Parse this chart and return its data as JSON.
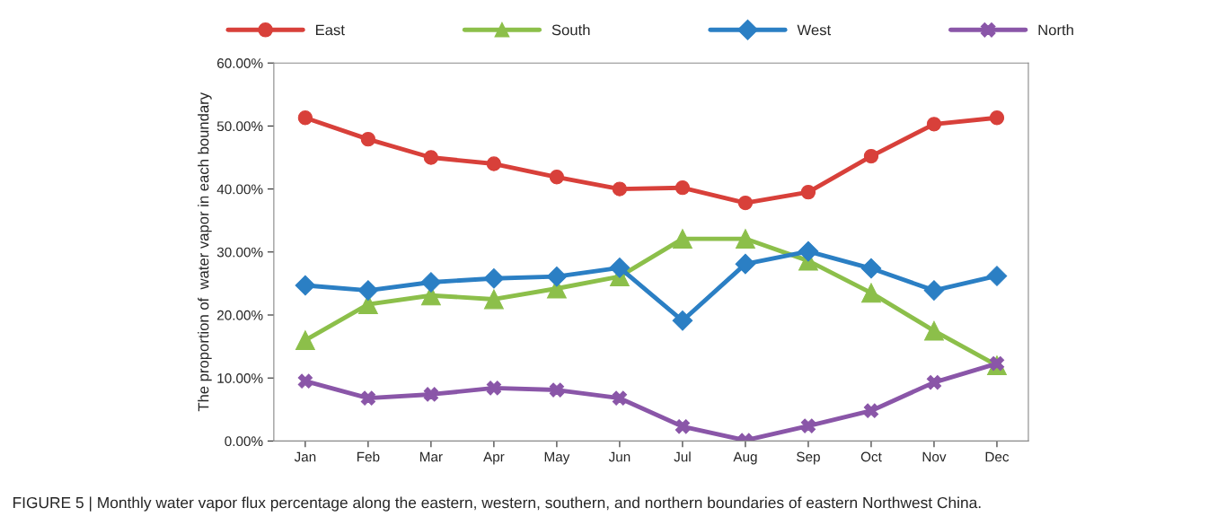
{
  "chart_data": {
    "type": "line",
    "ylabel": "The proportion of  water vapor in each boundary",
    "categories": [
      "Jan",
      "Feb",
      "Mar",
      "Apr",
      "May",
      "Jun",
      "Jul",
      "Aug",
      "Sep",
      "Oct",
      "Nov",
      "Dec"
    ],
    "series": [
      {
        "name": "East",
        "color": "#d8403a",
        "marker": "circle",
        "values": [
          51.3,
          47.9,
          45.0,
          44.0,
          41.9,
          40.0,
          40.2,
          37.8,
          39.5,
          45.2,
          50.3,
          51.3
        ]
      },
      {
        "name": "South",
        "color": "#8cbf4a",
        "marker": "triangle",
        "values": [
          16.0,
          21.7,
          23.1,
          22.5,
          24.2,
          26.1,
          32.1,
          32.1,
          28.6,
          23.5,
          17.5,
          12.0
        ]
      },
      {
        "name": "West",
        "color": "#2b7fc4",
        "marker": "diamond",
        "values": [
          24.7,
          23.9,
          25.2,
          25.8,
          26.1,
          27.5,
          19.1,
          28.1,
          30.1,
          27.4,
          23.9,
          26.2
        ]
      },
      {
        "name": "North",
        "color": "#8a56a8",
        "marker": "cross",
        "values": [
          9.5,
          6.8,
          7.4,
          8.4,
          8.1,
          6.8,
          2.3,
          0.1,
          2.4,
          4.8,
          9.3,
          12.3
        ]
      }
    ],
    "ylim": [
      0,
      60
    ],
    "yticks": [
      {
        "value": 0,
        "label": "0.00%"
      },
      {
        "value": 10,
        "label": "10.00%"
      },
      {
        "value": 20,
        "label": "20.00%"
      },
      {
        "value": 30,
        "label": "30.00%"
      },
      {
        "value": 40,
        "label": "40.00%"
      },
      {
        "value": 50,
        "label": "50.00%"
      },
      {
        "value": 60,
        "label": "60.00%"
      }
    ],
    "grid": false,
    "legend": "top",
    "annotations": [
      "FIGURE 5 | Monthly water vapor flux percentage along the eastern, western, southern, and northern boundaries of eastern Northwest China."
    ]
  }
}
